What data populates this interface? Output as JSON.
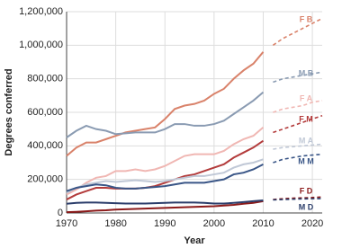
{
  "chart_data": {
    "type": "line",
    "x_label": "Year",
    "y_label": "Degrees conferred",
    "x": [
      1970,
      1972,
      1974,
      1976,
      1978,
      1980,
      1982,
      1984,
      1986,
      1988,
      1990,
      1992,
      1994,
      1996,
      1998,
      2000,
      2002,
      2004,
      2006,
      2008,
      2010
    ],
    "projection_x": [
      2012,
      2014,
      2016,
      2018,
      2020,
      2022
    ],
    "xlim": [
      1970,
      2022
    ],
    "xticks": [
      1970,
      1980,
      1990,
      2000,
      2010,
      2020
    ],
    "ylim": [
      0,
      1200000
    ],
    "yticks": [
      0,
      {
        "value": 200000,
        "label": "200,000"
      },
      {
        "value": 400000,
        "label": "400,000"
      },
      {
        "value": 600000,
        "label": "600,000"
      },
      {
        "value": 800000,
        "label": "800,000"
      },
      {
        "value": 1000000,
        "label": "1,000,000"
      },
      {
        "value": 1200000,
        "label": "1,200,000"
      }
    ],
    "grid": true,
    "series": [
      {
        "name": "F B",
        "color": "#d9826a",
        "values": [
          340000,
          390000,
          420000,
          420000,
          440000,
          460000,
          480000,
          490000,
          500000,
          510000,
          560000,
          620000,
          640000,
          650000,
          670000,
          710000,
          740000,
          800000,
          850000,
          890000,
          960000
        ],
        "projection": [
          1000000,
          1040000,
          1070000,
          1100000,
          1130000,
          1160000
        ]
      },
      {
        "name": "M B",
        "color": "#8a9bb2",
        "values": [
          450000,
          490000,
          520000,
          500000,
          490000,
          470000,
          475000,
          480000,
          480000,
          480000,
          500000,
          530000,
          530000,
          520000,
          520000,
          530000,
          550000,
          590000,
          630000,
          670000,
          720000
        ],
        "projection": [
          780000,
          800000,
          810000,
          820000,
          830000,
          840000
        ]
      },
      {
        "name": "F A",
        "color": "#f0b7b3",
        "values": [
          110000,
          140000,
          180000,
          210000,
          220000,
          250000,
          250000,
          260000,
          250000,
          260000,
          280000,
          310000,
          340000,
          350000,
          350000,
          350000,
          370000,
          410000,
          440000,
          460000,
          510000
        ],
        "projection": [
          600000,
          620000,
          630000,
          640000,
          660000,
          670000
        ]
      },
      {
        "name": "F M",
        "color": "#b33b3b",
        "values": [
          80000,
          110000,
          130000,
          150000,
          150000,
          145000,
          145000,
          145000,
          150000,
          160000,
          180000,
          200000,
          220000,
          230000,
          250000,
          270000,
          290000,
          330000,
          360000,
          390000,
          430000
        ],
        "projection": [
          480000,
          500000,
          520000,
          540000,
          560000,
          580000
        ]
      },
      {
        "name": "M A",
        "color": "#c0c8d6",
        "values": [
          120000,
          150000,
          170000,
          180000,
          190000,
          185000,
          190000,
          195000,
          190000,
          185000,
          190000,
          200000,
          210000,
          220000,
          220000,
          230000,
          240000,
          270000,
          290000,
          300000,
          320000
        ],
        "projection": [
          380000,
          390000,
          395000,
          400000,
          405000,
          410000
        ]
      },
      {
        "name": "M M",
        "color": "#3a5687",
        "values": [
          130000,
          150000,
          160000,
          170000,
          165000,
          150000,
          145000,
          145000,
          150000,
          155000,
          160000,
          170000,
          180000,
          180000,
          180000,
          190000,
          200000,
          230000,
          240000,
          260000,
          290000
        ],
        "projection": [
          300000,
          320000,
          330000,
          340000,
          345000,
          350000
        ]
      },
      {
        "name": "F D",
        "color": "#8b1a1a",
        "values": [
          5000,
          7000,
          10000,
          14000,
          16000,
          20000,
          22000,
          24000,
          26000,
          28000,
          30000,
          32000,
          34000,
          36000,
          38000,
          40000,
          44000,
          48000,
          55000,
          60000,
          70000
        ],
        "projection": [
          80000,
          85000,
          88000,
          90000,
          92000,
          95000
        ]
      },
      {
        "name": "M D",
        "color": "#2c3e6b",
        "values": [
          55000,
          60000,
          62000,
          62000,
          60000,
          58000,
          56000,
          56000,
          56000,
          58000,
          60000,
          62000,
          62000,
          62000,
          60000,
          56000,
          56000,
          60000,
          65000,
          70000,
          75000
        ],
        "projection": [
          78000,
          80000,
          82000,
          84000,
          85000,
          86000
        ]
      }
    ]
  }
}
